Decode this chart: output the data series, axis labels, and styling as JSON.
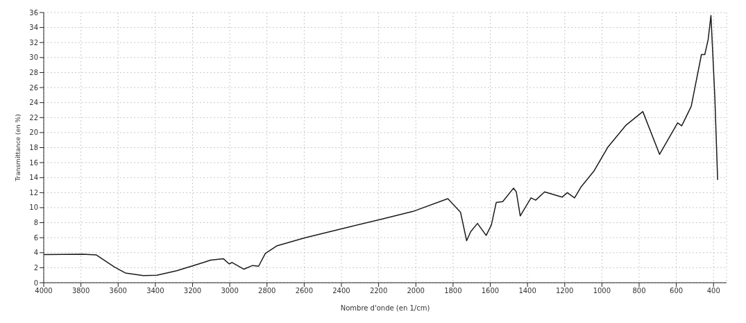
{
  "chart_data": {
    "type": "line",
    "xlabel": "Nombre d'onde (en 1/cm)",
    "ylabel": "Transmittance (en %)",
    "xlim": [
      4000,
      330
    ],
    "xticks": [
      4000,
      3800,
      3600,
      3400,
      3200,
      3000,
      2800,
      2600,
      2400,
      2200,
      2000,
      1800,
      1600,
      1400,
      1200,
      1000,
      800,
      600,
      400
    ],
    "ylim": [
      0,
      36
    ],
    "yticks": [
      0,
      2,
      4,
      6,
      8,
      10,
      12,
      14,
      16,
      18,
      20,
      22,
      24,
      26,
      28,
      30,
      32,
      34,
      36
    ],
    "grid": true,
    "marker": "none",
    "line_style": "solid",
    "series": [
      {
        "color": "#1a1a1a",
        "x": [
          4000,
          3789,
          3717,
          3620,
          3562,
          3465,
          3392,
          3285,
          3140,
          3104,
          3035,
          3003,
          2988,
          2924,
          2877,
          2845,
          2809,
          2748,
          2595,
          2347,
          2180,
          2015,
          1828,
          1760,
          1727,
          1705,
          1669,
          1622,
          1594,
          1568,
          1533,
          1475,
          1460,
          1439,
          1381,
          1356,
          1308,
          1214,
          1186,
          1147,
          1111,
          1042,
          967,
          870,
          780,
          690,
          593,
          571,
          520,
          465,
          447,
          429,
          414,
          393,
          378
        ],
        "values": [
          3.75,
          3.8,
          3.7,
          2.1,
          1.3,
          0.95,
          1.0,
          1.6,
          2.7,
          3.0,
          3.2,
          2.5,
          2.7,
          1.8,
          2.3,
          2.2,
          3.9,
          4.9,
          6.0,
          7.5,
          8.5,
          9.5,
          11.2,
          9.4,
          5.6,
          6.8,
          7.9,
          6.3,
          7.7,
          10.7,
          10.8,
          12.6,
          12.1,
          8.9,
          11.3,
          11.0,
          12.1,
          11.4,
          12.0,
          11.3,
          12.8,
          14.9,
          18.1,
          21.0,
          22.8,
          17.1,
          21.3,
          20.9,
          23.5,
          30.4,
          30.4,
          32.4,
          35.6,
          24.7,
          13.7
        ]
      }
    ]
  }
}
